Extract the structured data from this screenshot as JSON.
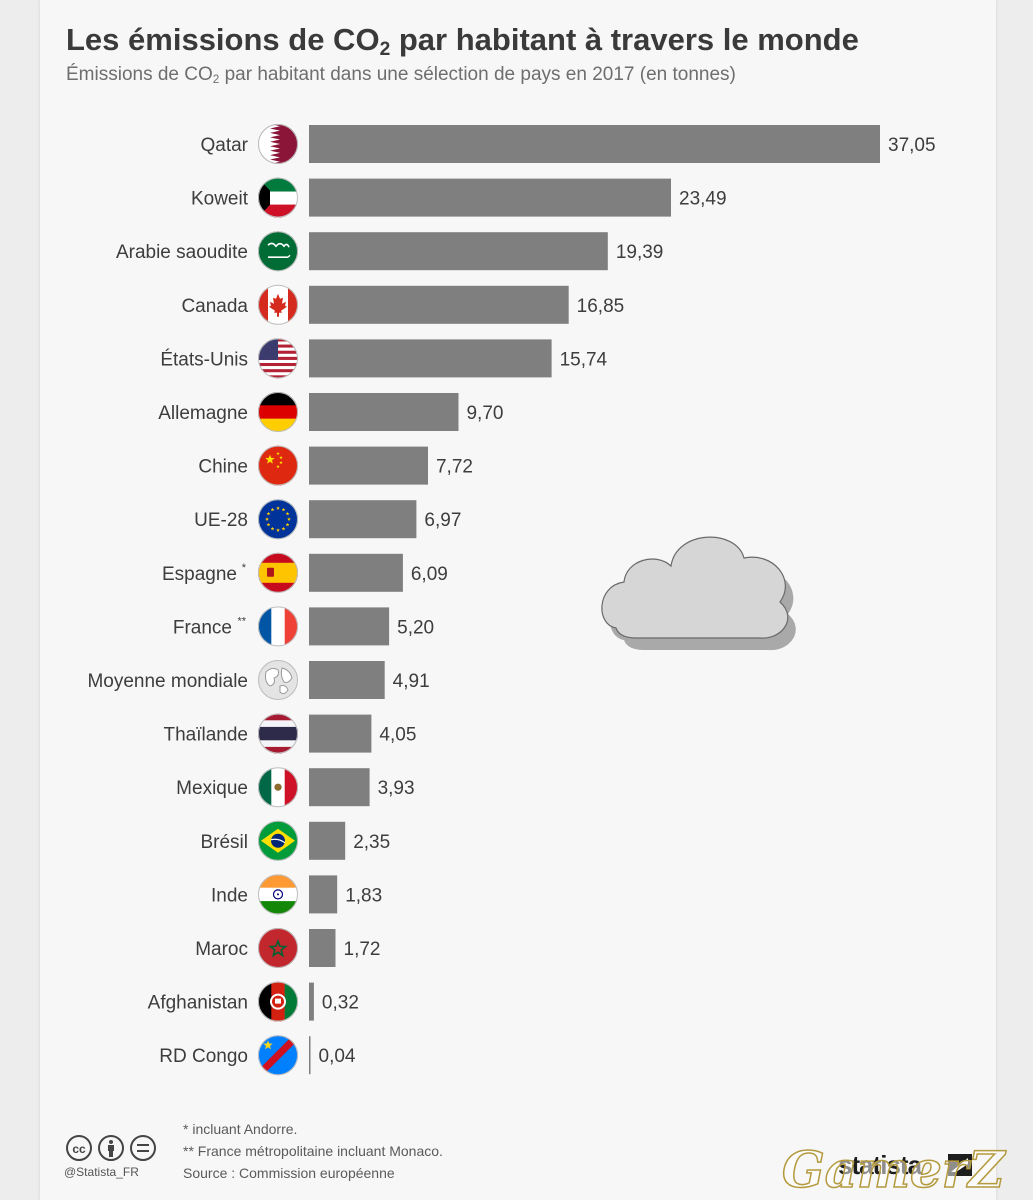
{
  "header": {
    "title_pre": "Les émissions de CO",
    "title_sub": "2",
    "title_post": " par habitant à travers le monde",
    "subtitle_pre": "Émissions de CO",
    "subtitle_sub": "2",
    "subtitle_post": " par habitant dans une sélection de pays en 2017 (en tonnes)"
  },
  "chart_data": {
    "type": "bar",
    "orientation": "horizontal",
    "categories": [
      "Qatar",
      "Koweit",
      "Arabie saoudite",
      "Canada",
      "États-Unis",
      "Allemagne",
      "Chine",
      "UE-28",
      "Espagne",
      "France",
      "Moyenne mondiale",
      "Thaïlande",
      "Mexique",
      "Brésil",
      "Inde",
      "Maroc",
      "Afghanistan",
      "RD Congo"
    ],
    "footnote_marks": [
      "",
      "",
      "",
      "",
      "",
      "",
      "",
      "",
      "*",
      "**",
      "",
      "",
      "",
      "",
      "",
      "",
      "",
      ""
    ],
    "values": [
      37.05,
      23.49,
      19.39,
      16.85,
      15.74,
      9.7,
      7.72,
      6.97,
      6.09,
      5.2,
      4.91,
      4.05,
      3.93,
      2.35,
      1.83,
      1.72,
      0.32,
      0.04
    ],
    "value_labels": [
      "37,05",
      "23,49",
      "19,39",
      "16,85",
      "15,74",
      "9,70",
      "7,72",
      "6,97",
      "6,09",
      "5,20",
      "4,91",
      "4,05",
      "3,93",
      "2,35",
      "1,83",
      "1,72",
      "0,32",
      "0,04"
    ],
    "flag_icons": [
      "flag-qatar-icon",
      "flag-kuwait-icon",
      "flag-saudi-arabia-icon",
      "flag-canada-icon",
      "flag-usa-icon",
      "flag-germany-icon",
      "flag-china-icon",
      "flag-eu-icon",
      "flag-spain-icon",
      "flag-france-icon",
      "globe-icon",
      "flag-thailand-icon",
      "flag-mexico-icon",
      "flag-brazil-icon",
      "flag-india-icon",
      "flag-morocco-icon",
      "flag-afghanistan-icon",
      "flag-dr-congo-icon"
    ],
    "bar_color": "#7f7f7f",
    "xlim": [
      0,
      37.05
    ]
  },
  "footer": {
    "note1": "*   incluant Andorre.",
    "note2": "** France métropolitaine incluant Monaco.",
    "source": "Source : Commission européenne",
    "handle": "@Statista_FR",
    "logo": "statista",
    "watermark": "GamerZ"
  }
}
